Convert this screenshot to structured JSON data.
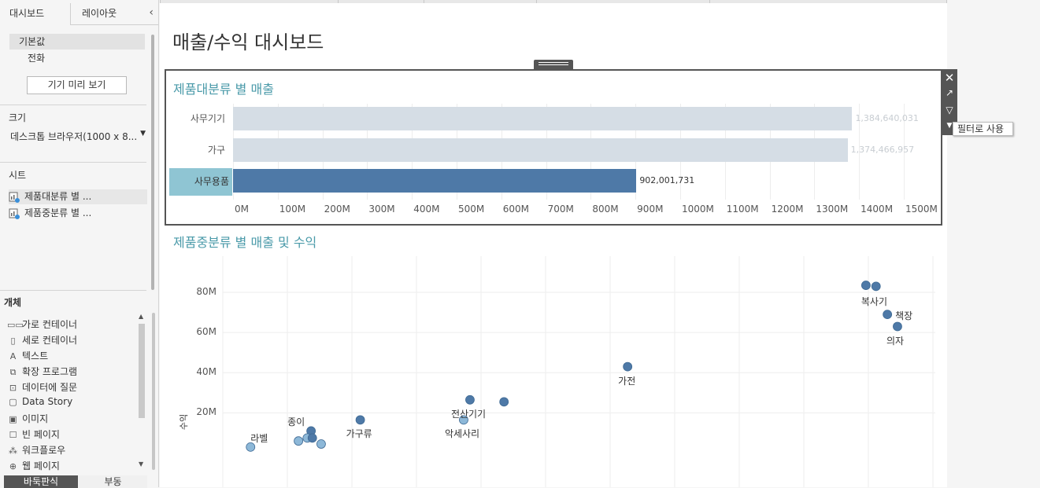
{
  "left_pane": {
    "tabs": [
      "대시보드",
      "레이아웃"
    ],
    "device": {
      "default": "기본값",
      "phone": "전화",
      "preview_button": "기기 미리 보기"
    },
    "size": {
      "heading": "크기",
      "value": "데스크톱 브라우저(1000 x 8..."
    },
    "sheets": {
      "heading": "시트",
      "items": [
        "제품대분류 별 ...",
        "제품중분류 별 ..."
      ]
    },
    "objects": {
      "heading": "개체",
      "items": [
        {
          "label": "가로 컨테이너",
          "icon": "horizontal-container-icon",
          "glyph": "▭▭"
        },
        {
          "label": "세로 컨테이너",
          "icon": "vertical-container-icon",
          "glyph": "▯"
        },
        {
          "label": "텍스트",
          "icon": "text-icon",
          "glyph": "A"
        },
        {
          "label": "확장 프로그램",
          "icon": "extension-icon",
          "glyph": "⧉"
        },
        {
          "label": "데이터에 질문",
          "icon": "ask-data-icon",
          "glyph": "⊡"
        },
        {
          "label": "Data Story",
          "icon": "data-story-icon",
          "glyph": "▢"
        },
        {
          "label": "이미지",
          "icon": "image-icon",
          "glyph": "▣"
        },
        {
          "label": "빈 페이지",
          "icon": "blank-icon",
          "glyph": "☐"
        },
        {
          "label": "워크플로우",
          "icon": "workflow-icon",
          "glyph": "⁂"
        },
        {
          "label": "웹 페이지",
          "icon": "web-page-icon",
          "glyph": "⊕"
        }
      ]
    },
    "bottom_tabs": [
      "바둑판식",
      "부동"
    ]
  },
  "dashboard": {
    "title": "매출/수익 대시보드",
    "tooltip": "필터로 사용",
    "colors": {
      "accent_title": "#4a9aa9",
      "bar_dim": "#d5dde5",
      "bar_selected": "#4e79a7",
      "point": "#4e79a7",
      "point_light": "#8db8d8"
    }
  },
  "chart_data": [
    {
      "type": "bar",
      "title": "제품대분류 별 매출",
      "categories": [
        "사무기기",
        "가구",
        "사무용품"
      ],
      "values": [
        1384640031,
        1374466957,
        902001731
      ],
      "value_labels": [
        "1,384,640,031",
        "1,374,466,957",
        "902,001,731"
      ],
      "selected": "사무용품",
      "x_ticks": [
        "0M",
        "100M",
        "200M",
        "300M",
        "400M",
        "500M",
        "600M",
        "700M",
        "800M",
        "900M",
        "1000M",
        "1100M",
        "1200M",
        "1300M",
        "1400M",
        "1500M"
      ],
      "xlim": [
        0,
        1530000000
      ],
      "grid": true
    },
    {
      "type": "scatter",
      "title": "제품중분류 별 매출 및 수익",
      "ylabel": "수익",
      "y_ticks": [
        "20M",
        "40M",
        "60M",
        "80M"
      ],
      "ylim": [
        -17000000,
        98000000
      ],
      "xlim": [
        -5000000,
        560000000
      ],
      "grid": true,
      "points": [
        {
          "x": 505000000,
          "y": 83500000,
          "label": "복사기"
        },
        {
          "x": 513000000,
          "y": 83000000,
          "label": ""
        },
        {
          "x": 522000000,
          "y": 69000000,
          "label": "책장"
        },
        {
          "x": 530000000,
          "y": 63000000,
          "label": "의자"
        },
        {
          "x": 316000000,
          "y": 43000000,
          "label": "가전"
        },
        {
          "x": 191000000,
          "y": 26500000,
          "label": "전산기기"
        },
        {
          "x": 218000000,
          "y": 25500000,
          "label": ""
        },
        {
          "x": 186000000,
          "y": 16500000,
          "label": "악세사리",
          "light": true
        },
        {
          "x": 104000000,
          "y": 16500000,
          "label": "가구류"
        },
        {
          "x": 65000000,
          "y": 11000000,
          "label": "종이"
        },
        {
          "x": 62000000,
          "y": 7500000,
          "label": "",
          "light": true
        },
        {
          "x": 66000000,
          "y": 7500000,
          "label": ""
        },
        {
          "x": 55000000,
          "y": 6000000,
          "label": "",
          "light": true
        },
        {
          "x": 73000000,
          "y": 4500000,
          "label": "",
          "light": true
        },
        {
          "x": 17000000,
          "y": 3000000,
          "label": "라벨",
          "light": true
        }
      ]
    }
  ]
}
